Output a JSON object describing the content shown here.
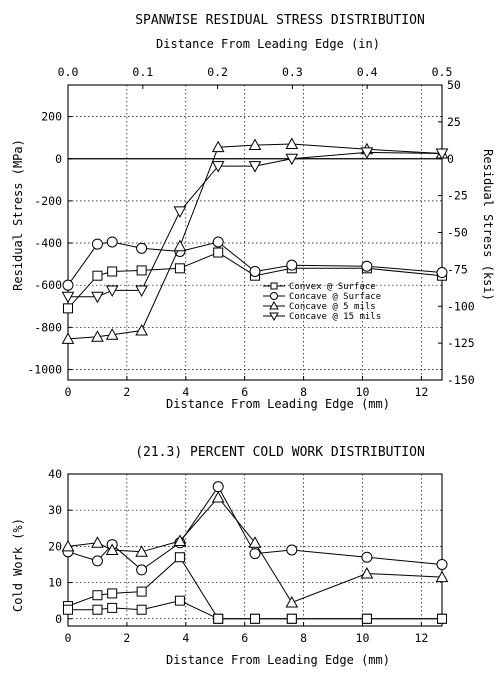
{
  "chart_data": [
    {
      "type": "line",
      "title": "SPANWISE RESIDUAL STRESS DISTRIBUTION",
      "xlabel": "Distance From Leading Edge (mm)",
      "x2label": "Distance From Leading Edge (in)",
      "ylabel": "Residual Stress (MPa)",
      "y2label": "Residual Stress (ksi)",
      "xlim": [
        0,
        12.7
      ],
      "ylim": [
        -1050,
        350
      ],
      "x2lim": [
        0,
        0.5
      ],
      "y2lim": [
        -150,
        50
      ],
      "grid": true,
      "legend_position": "lower-right",
      "xticks": [
        "0",
        "2",
        "4",
        "6",
        "8",
        "10",
        "12"
      ],
      "yticks": [
        "200",
        "0",
        "-200",
        "-400",
        "-600",
        "-800",
        "-1000"
      ],
      "x2ticks": [
        "0.0",
        "0.1",
        "0.2",
        "0.3",
        "0.4",
        "0.5"
      ],
      "y2ticks": [
        "50",
        "25",
        "0",
        "-25",
        "-50",
        "-75",
        "-100",
        "-125",
        "-150"
      ],
      "series": [
        {
          "name": "Convex @ Surface",
          "marker": "square",
          "x": [
            0,
            1.0,
            1.5,
            2.5,
            3.8,
            5.1,
            6.35,
            7.6,
            10.15,
            12.7
          ],
          "y": [
            -710,
            -555,
            -535,
            -530,
            -520,
            -445,
            -555,
            -520,
            -520,
            -555
          ]
        },
        {
          "name": "Concave @ Surface",
          "marker": "circle",
          "x": [
            0,
            1.0,
            1.5,
            2.5,
            3.8,
            5.1,
            6.35,
            7.6,
            10.15,
            12.7
          ],
          "y": [
            -600,
            -405,
            -395,
            -425,
            -440,
            -395,
            -535,
            -505,
            -510,
            -540
          ]
        },
        {
          "name": "Concave @ 5 mils",
          "marker": "triangle-up",
          "x": [
            0,
            1.0,
            1.5,
            2.5,
            3.8,
            5.1,
            6.35,
            7.6,
            10.15,
            12.7
          ],
          "y": [
            -855,
            -845,
            -835,
            -815,
            -415,
            55,
            65,
            70,
            45,
            25
          ]
        },
        {
          "name": "Concave @ 15 mils",
          "marker": "triangle-down",
          "x": [
            0,
            1.0,
            1.5,
            2.5,
            3.8,
            5.1,
            6.35,
            7.6,
            10.15,
            12.7
          ],
          "y": [
            -655,
            -655,
            -625,
            -625,
            -250,
            -35,
            -35,
            0,
            30,
            25
          ]
        }
      ]
    },
    {
      "type": "line",
      "title": "(21.3) PERCENT COLD WORK DISTRIBUTION",
      "xlabel": "Distance From Leading Edge (mm)",
      "ylabel": "Cold Work (%)",
      "xlim": [
        0,
        12.7
      ],
      "ylim": [
        -2,
        40
      ],
      "grid": true,
      "xticks": [
        "0",
        "2",
        "4",
        "6",
        "8",
        "10",
        "12"
      ],
      "yticks": [
        "40",
        "30",
        "20",
        "10",
        "0"
      ],
      "series": [
        {
          "marker": "square",
          "x": [
            0,
            1.0,
            1.5,
            2.5,
            3.8,
            5.1,
            6.35,
            7.6,
            10.15,
            12.7
          ],
          "y": [
            3.5,
            6.5,
            7.0,
            7.5,
            17.0,
            0,
            0,
            0,
            0,
            0
          ]
        },
        {
          "marker": "square",
          "x": [
            0,
            1.0,
            1.5,
            2.5,
            3.8,
            5.1,
            6.35,
            7.6,
            10.15,
            12.7
          ],
          "y": [
            2.5,
            2.5,
            3.0,
            2.5,
            5.0,
            0,
            0,
            0,
            0,
            0
          ]
        },
        {
          "marker": "circle",
          "x": [
            0,
            1.0,
            1.5,
            2.5,
            3.8,
            5.1,
            6.35,
            7.6,
            10.15,
            12.7
          ],
          "y": [
            18.5,
            16.0,
            20.5,
            13.5,
            21.0,
            36.5,
            18.0,
            19.0,
            17.0,
            15.0
          ]
        },
        {
          "marker": "triangle-up",
          "x": [
            0,
            1.0,
            1.5,
            2.5,
            3.8,
            5.1,
            6.35,
            7.6,
            10.15,
            12.7
          ],
          "y": [
            20.0,
            21.0,
            19.0,
            18.5,
            21.5,
            33.5,
            21.0,
            4.5,
            12.5,
            11.5
          ]
        }
      ]
    }
  ]
}
